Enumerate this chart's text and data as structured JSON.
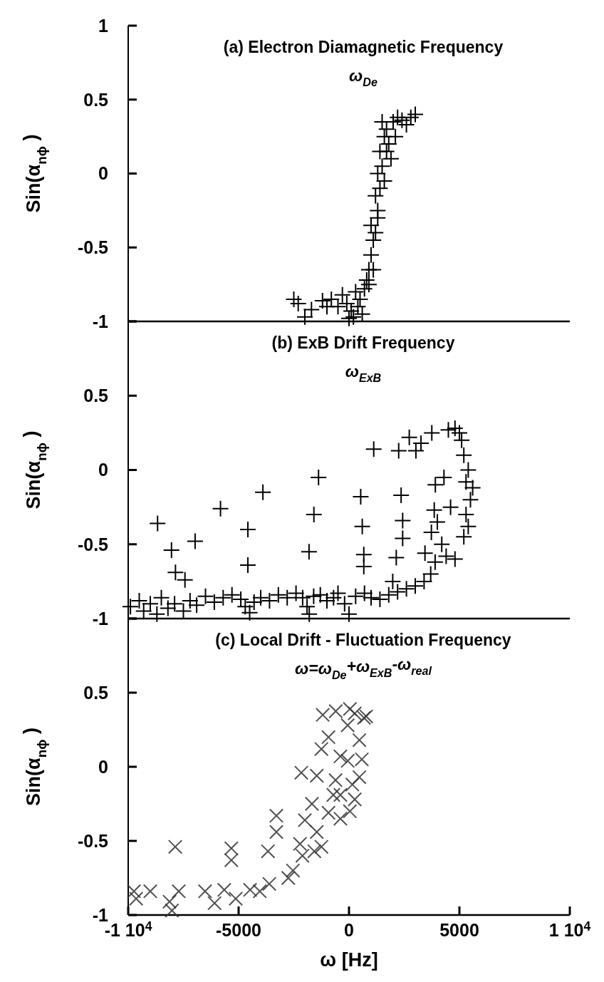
{
  "chart_data": [
    {
      "type": "scatter",
      "title": "(a) Electron Diamagnetic Frequency",
      "subtitle": "ω$_{De}$",
      "ylabel": "Sin(α$_{nϕ}$ )",
      "xlim": [
        -10000,
        10000
      ],
      "ylim": [
        -1,
        1
      ],
      "yticks": [
        1,
        0.5,
        0,
        -0.5,
        -1
      ],
      "tick_labels": "y",
      "marker": "cross",
      "series": [
        {
          "color": "#000000",
          "x": [
            -2500,
            -2300,
            -2000,
            -1700,
            -1200,
            -800,
            -500,
            -300,
            -100,
            100,
            200,
            300,
            400,
            500,
            600,
            700,
            800,
            900,
            1000,
            1100,
            1000,
            1200,
            1300,
            1200,
            1400,
            1300,
            1500,
            1400,
            1600,
            1500,
            1700,
            1800,
            2000,
            2200,
            2400,
            2600,
            2800,
            3000,
            1900,
            2100,
            1600,
            1100,
            900,
            -1000,
            0,
            1300,
            1700
          ],
          "values": [
            -0.85,
            -0.88,
            -0.97,
            -0.92,
            -0.86,
            -0.85,
            -0.9,
            -0.82,
            -0.88,
            -0.93,
            -0.97,
            -0.8,
            -0.9,
            -0.85,
            -0.95,
            -0.78,
            -0.72,
            -0.65,
            -0.55,
            -0.45,
            -0.35,
            -0.4,
            -0.25,
            -0.15,
            -0.1,
            0.0,
            0.05,
            0.15,
            0.25,
            0.35,
            0.3,
            0.2,
            0.35,
            0.38,
            0.36,
            0.33,
            0.38,
            0.4,
            0.1,
            0.25,
            -0.05,
            -0.65,
            -0.75,
            -0.9,
            -0.98,
            -0.3,
            0.15
          ]
        }
      ]
    },
    {
      "type": "scatter",
      "title": "(b) ExB Drift Frequency",
      "subtitle": "ω$_{ExB}$",
      "ylabel": "Sin(α$_{nϕ}$ )",
      "xlim": [
        -10000,
        10000
      ],
      "ylim": [
        -1,
        1
      ],
      "yticks": [
        {
          "value": 1,
          "label": null
        },
        0.5,
        0,
        -0.5,
        -1
      ],
      "tick_labels": "y",
      "marker": "cross",
      "series": [
        {
          "color": "#000000",
          "x": [
            -8670,
            -8040,
            -7860,
            -7430,
            -6970,
            -5820,
            -4580,
            -4580,
            -3900,
            -1380,
            -1590,
            -1810,
            530,
            600,
            670,
            670,
            1120,
            2140,
            2360,
            2430,
            2430,
            2250,
            2730,
            3030,
            3260,
            3750,
            3910,
            3860,
            3730,
            3440,
            1980,
            -9900,
            -9500,
            -9300,
            -9000,
            -8700,
            -8500,
            -8200,
            -7900,
            -7500,
            -7200,
            -6900,
            -6500,
            -6100,
            -5700,
            -5300,
            -4900,
            -4700,
            -4500,
            -4300,
            -4000,
            -3600,
            -3200,
            -2800,
            -2400,
            -2100,
            -1900,
            -1800,
            -1600,
            -1300,
            -1000,
            -700,
            -500,
            -200,
            0,
            300,
            700,
            1000,
            1400,
            1800,
            2200,
            2600,
            3000,
            3400,
            3700,
            3900,
            4200,
            4400,
            4800,
            5000,
            5100,
            5200,
            5400,
            5300,
            5600,
            5500,
            5300,
            5400,
            5200,
            4800,
            4500,
            4300,
            4600,
            4000
          ],
          "values": [
            -0.36,
            -0.54,
            -0.69,
            -0.74,
            -0.48,
            -0.26,
            -0.4,
            -0.64,
            -0.15,
            -0.05,
            -0.3,
            -0.55,
            -0.18,
            -0.38,
            -0.57,
            -0.65,
            0.14,
            -0.59,
            -0.17,
            -0.34,
            -0.46,
            0.13,
            0.22,
            0.13,
            0.18,
            0.25,
            -0.1,
            -0.27,
            -0.42,
            -0.56,
            -0.75,
            -0.92,
            -0.88,
            -0.95,
            -0.9,
            -0.97,
            -0.86,
            -0.93,
            -0.9,
            -0.95,
            -0.88,
            -0.91,
            -0.85,
            -0.89,
            -0.86,
            -0.84,
            -0.87,
            -0.92,
            -0.96,
            -0.89,
            -0.86,
            -0.88,
            -0.84,
            -0.86,
            -0.83,
            -0.86,
            -0.92,
            -0.97,
            -0.85,
            -0.84,
            -0.88,
            -0.86,
            -0.83,
            -0.9,
            -0.97,
            -0.85,
            -0.83,
            -0.86,
            -0.87,
            -0.84,
            -0.82,
            -0.8,
            -0.78,
            -0.75,
            -0.7,
            -0.62,
            -0.5,
            -0.58,
            0.28,
            0.25,
            0.2,
            0.1,
            0.0,
            -0.08,
            -0.12,
            -0.2,
            -0.3,
            -0.38,
            -0.45,
            -0.6,
            0.27,
            -0.05,
            -0.25,
            -0.35
          ]
        }
      ]
    },
    {
      "type": "scatter",
      "title": "(c) Local Drift - Fluctuation Frequency",
      "subtitle": "ω=ω$_{De}$+ω$_{ExB}$-ω$_{real}$",
      "xlabel": "ω [Hz]",
      "ylabel": "Sin(α$_{nϕ}$ )",
      "xlim": [
        -10000,
        10000
      ],
      "ylim": [
        -1,
        1
      ],
      "xticks": [
        {
          "value": -10000,
          "label": "-1 10$^{4}$"
        },
        -5000,
        0,
        5000,
        {
          "value": 10000,
          "label": "1 10$^{4}$"
        }
      ],
      "yticks": [
        {
          "value": 1,
          "label": null
        },
        0.5,
        0,
        -0.5,
        -1
      ],
      "marker": "x",
      "series": [
        {
          "color": "#333333",
          "x": [
            -1190,
            -600,
            260,
            680,
            -60,
            -930,
            470,
            -390,
            -1250,
            -60,
            580,
            -2160,
            -1460,
            -610,
            150,
            -390,
            260,
            -1680,
            -930,
            -390,
            40,
            -3290,
            -3290,
            -2000,
            -1460,
            -2220,
            -1570,
            -1250,
            -3670,
            -5330,
            -5330,
            -7870,
            -2750,
            -3610,
            -4480,
            -5650,
            -6520,
            -7710,
            -8130,
            -8020,
            -9000,
            -9740,
            -9640,
            -6090,
            -5130,
            -4040,
            -2110,
            -2540,
            -710,
            470,
            780,
            40
          ],
          "values": [
            0.35,
            0.375,
            0.36,
            0.33,
            0.28,
            0.2,
            0.18,
            0.07,
            0.12,
            0.04,
            0.05,
            -0.04,
            -0.06,
            -0.09,
            -0.12,
            -0.19,
            -0.22,
            -0.25,
            -0.31,
            -0.35,
            -0.3,
            -0.33,
            -0.44,
            -0.36,
            -0.44,
            -0.52,
            -0.57,
            -0.54,
            -0.57,
            -0.55,
            -0.63,
            -0.54,
            -0.75,
            -0.79,
            -0.83,
            -0.83,
            -0.84,
            -0.84,
            -0.91,
            -0.97,
            -0.84,
            -0.84,
            -0.89,
            -0.92,
            -0.89,
            -0.84,
            -0.6,
            -0.7,
            -0.19,
            -0.07,
            0.34,
            0.39
          ]
        }
      ]
    }
  ]
}
